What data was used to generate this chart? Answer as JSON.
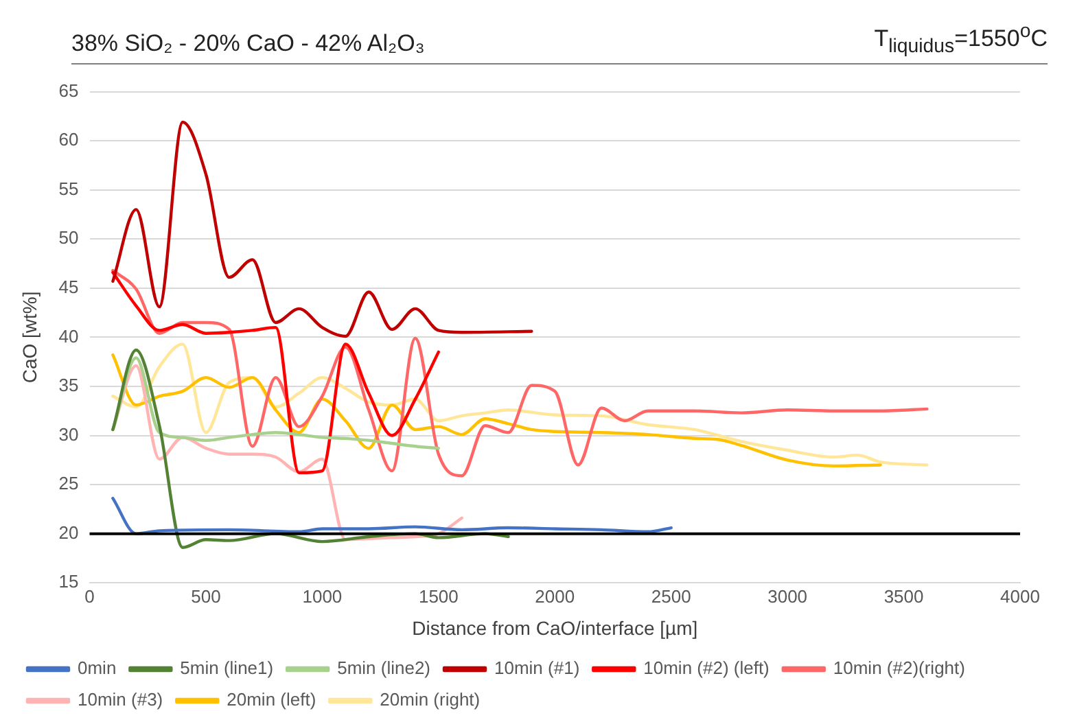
{
  "chart_data": {
    "type": "line",
    "title": "38% SiO₂ - 20% CaO - 42% Al₂O₃",
    "annotations": [
      "T$_{liquidus}$=1550$^{o}$C"
    ],
    "xlabel": "Distance from CaO/interface [µm]",
    "ylabel": "CaO [wt%]",
    "xlim": [
      0,
      4000
    ],
    "xticks": [
      0,
      500,
      1000,
      1500,
      2000,
      2500,
      3000,
      3500,
      4000
    ],
    "ylim": [
      15,
      65
    ],
    "yticks": [
      15,
      20,
      25,
      30,
      35,
      40,
      45,
      50,
      55,
      60,
      65
    ],
    "grid": "y",
    "legend": "bottom",
    "marker": "none",
    "line_style": "solid",
    "ref_lines": [
      {
        "axis": "y",
        "value": 20,
        "color": "#000000"
      }
    ],
    "series": [
      {
        "name": "0min",
        "color": "#4472c4",
        "x": [
          100,
          200,
          300,
          600,
          900,
          1000,
          1200,
          1400,
          1600,
          1800,
          2000,
          2200,
          2400,
          2500
        ],
        "values": [
          23.6,
          20,
          20.3,
          20.4,
          20.2,
          20.5,
          20.5,
          20.7,
          20.4,
          20.6,
          20.5,
          20.4,
          20.2,
          20.6
        ]
      },
      {
        "name": "5min (line1)",
        "color": "#548235",
        "x": [
          100,
          200,
          300,
          400,
          500,
          600,
          800,
          1000,
          1200,
          1400,
          1500,
          1700,
          1800
        ],
        "values": [
          30.6,
          38.7,
          31,
          18.6,
          19.4,
          19.3,
          20,
          19.2,
          19.7,
          20,
          19.6,
          20,
          19.7
        ]
      },
      {
        "name": "5min (line2)",
        "color": "#a9d18e",
        "x": [
          100,
          200,
          300,
          400,
          500,
          600,
          700,
          800,
          900,
          1000,
          1100,
          1200,
          1300,
          1400,
          1500
        ],
        "values": [
          30.6,
          37.9,
          30.3,
          29.8,
          29.5,
          29.8,
          30.1,
          30.3,
          30.1,
          29.8,
          29.7,
          29.5,
          29.2,
          28.9,
          28.7
        ]
      },
      {
        "name": "10min (#1)",
        "color": "#c00000",
        "x": [
          100,
          200,
          300,
          400,
          500,
          600,
          700,
          800,
          900,
          1000,
          1100,
          1200,
          1300,
          1400,
          1500,
          1600,
          1900
        ],
        "values": [
          45.7,
          53,
          43.1,
          61.9,
          56.6,
          46.1,
          47.9,
          41.5,
          42.9,
          41,
          40.1,
          44.6,
          40.8,
          42.9,
          40.7,
          40.5,
          40.6
        ]
      },
      {
        "name": "10min (#2) (left)",
        "color": "#ff0000",
        "x": [
          100,
          200,
          300,
          400,
          500,
          600,
          700,
          800,
          900,
          1000,
          1100,
          1200,
          1300,
          1400,
          1500
        ],
        "values": [
          46.6,
          43.2,
          40.7,
          41.3,
          40.4,
          40.5,
          40.7,
          41,
          26.2,
          26.4,
          39.3,
          34.3,
          30,
          33.7,
          38.5
        ]
      },
      {
        "name": "10min (#2)(right)",
        "color": "#ff6666",
        "x": [
          100,
          200,
          300,
          400,
          500,
          600,
          700,
          800,
          900,
          1000,
          1100,
          1200,
          1300,
          1400,
          1500,
          1600,
          1700,
          1800,
          1900,
          2000,
          2100,
          2200,
          2300,
          2400,
          2600,
          2800,
          3000,
          3200,
          3400,
          3600
        ],
        "values": [
          46.8,
          44.9,
          40.4,
          41.5,
          41.5,
          40.8,
          28.9,
          35.9,
          30.9,
          34,
          39,
          32.6,
          26.4,
          39.9,
          28.1,
          25.9,
          31,
          30.3,
          35.1,
          34.5,
          27,
          32.8,
          31.5,
          32.5,
          32.5,
          32.3,
          32.6,
          32.5,
          32.5,
          32.7
        ]
      },
      {
        "name": "10min (#3)",
        "color": "#ffb3b3",
        "x": [
          100,
          200,
          300,
          400,
          500,
          600,
          700,
          800,
          900,
          1000,
          1100,
          1200,
          1300,
          1400,
          1500,
          1600
        ],
        "values": [
          30.6,
          37.1,
          27.6,
          29.8,
          28.7,
          28.1,
          28.1,
          27.8,
          26.3,
          27.6,
          19.4,
          19.5,
          19.6,
          19.7,
          20,
          21.6
        ]
      },
      {
        "name": "20min (left)",
        "color": "#ffc000",
        "x": [
          100,
          200,
          300,
          400,
          500,
          600,
          700,
          800,
          900,
          1000,
          1100,
          1200,
          1300,
          1400,
          1500,
          1600,
          1700,
          1800,
          1900,
          2000,
          2200,
          2400,
          2600,
          2700,
          2800,
          3000,
          3200,
          3400
        ],
        "values": [
          38.2,
          33.1,
          34,
          34.5,
          35.9,
          34.9,
          35.9,
          32.6,
          30.3,
          33.7,
          31.5,
          28.7,
          33.1,
          30.6,
          30.9,
          30.1,
          31.7,
          31.2,
          30.6,
          30.4,
          30.3,
          30.1,
          29.7,
          29.6,
          29,
          27.5,
          26.9,
          27
        ]
      },
      {
        "name": "20min (right)",
        "color": "#ffe699",
        "x": [
          100,
          200,
          300,
          400,
          500,
          600,
          700,
          800,
          900,
          1000,
          1100,
          1200,
          1300,
          1400,
          1500,
          1600,
          1700,
          1800,
          2000,
          2200,
          2400,
          2600,
          2800,
          3000,
          3200,
          3300,
          3400,
          3600
        ],
        "values": [
          34,
          32.9,
          37,
          39.3,
          30.3,
          35.4,
          35.9,
          32.9,
          34.3,
          35.9,
          34.8,
          33.4,
          33.1,
          33.7,
          31.5,
          32,
          32.3,
          32.6,
          32.1,
          32,
          31.1,
          30.6,
          29.4,
          28.5,
          27.8,
          28,
          27.3,
          27
        ]
      }
    ]
  }
}
